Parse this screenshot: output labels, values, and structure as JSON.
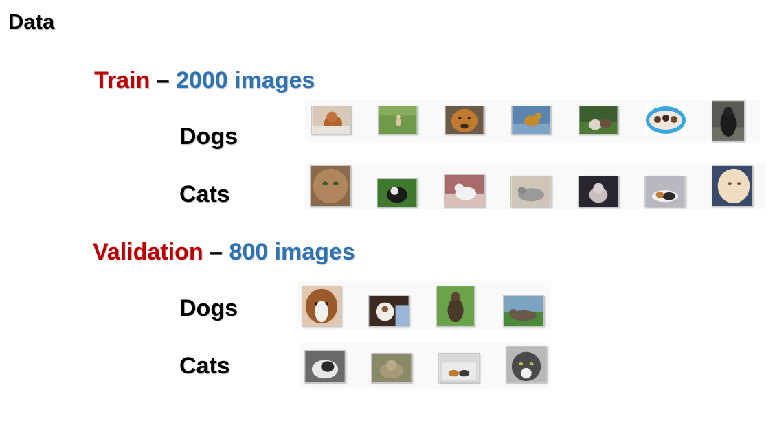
{
  "title": "Data",
  "train": {
    "name": "Train",
    "dash": "–",
    "count": "2000 images",
    "dogs_label": "Dogs",
    "cats_label": "Cats",
    "dog_thumbs": [
      "puppy-photo",
      "small-dog-on-grass-photo",
      "dog-face-photo",
      "dog-on-floor-photo",
      "dogs-in-yard-photo",
      "puppies-in-basket-photo",
      "black-dog-photo"
    ],
    "cat_thumbs": [
      "cat-face-photo",
      "cat-in-grass-photo",
      "white-cat-photo",
      "grey-cat-photo",
      "kitten-photo",
      "calico-cat-photo",
      "cream-cat-photo"
    ]
  },
  "validation": {
    "name": "Validation",
    "dash": "–",
    "count": "800 images",
    "dogs_label": "Dogs",
    "cats_label": "Cats",
    "dog_thumbs": [
      "sheltie-dog-photo",
      "dog-with-person-photo",
      "dog-on-leash-photo",
      "dog-lying-photo"
    ],
    "cat_thumbs": [
      "tabby-cat-photo",
      "tabby-cat-photo",
      "cats-in-box-photo",
      "grey-cat-photo"
    ]
  }
}
